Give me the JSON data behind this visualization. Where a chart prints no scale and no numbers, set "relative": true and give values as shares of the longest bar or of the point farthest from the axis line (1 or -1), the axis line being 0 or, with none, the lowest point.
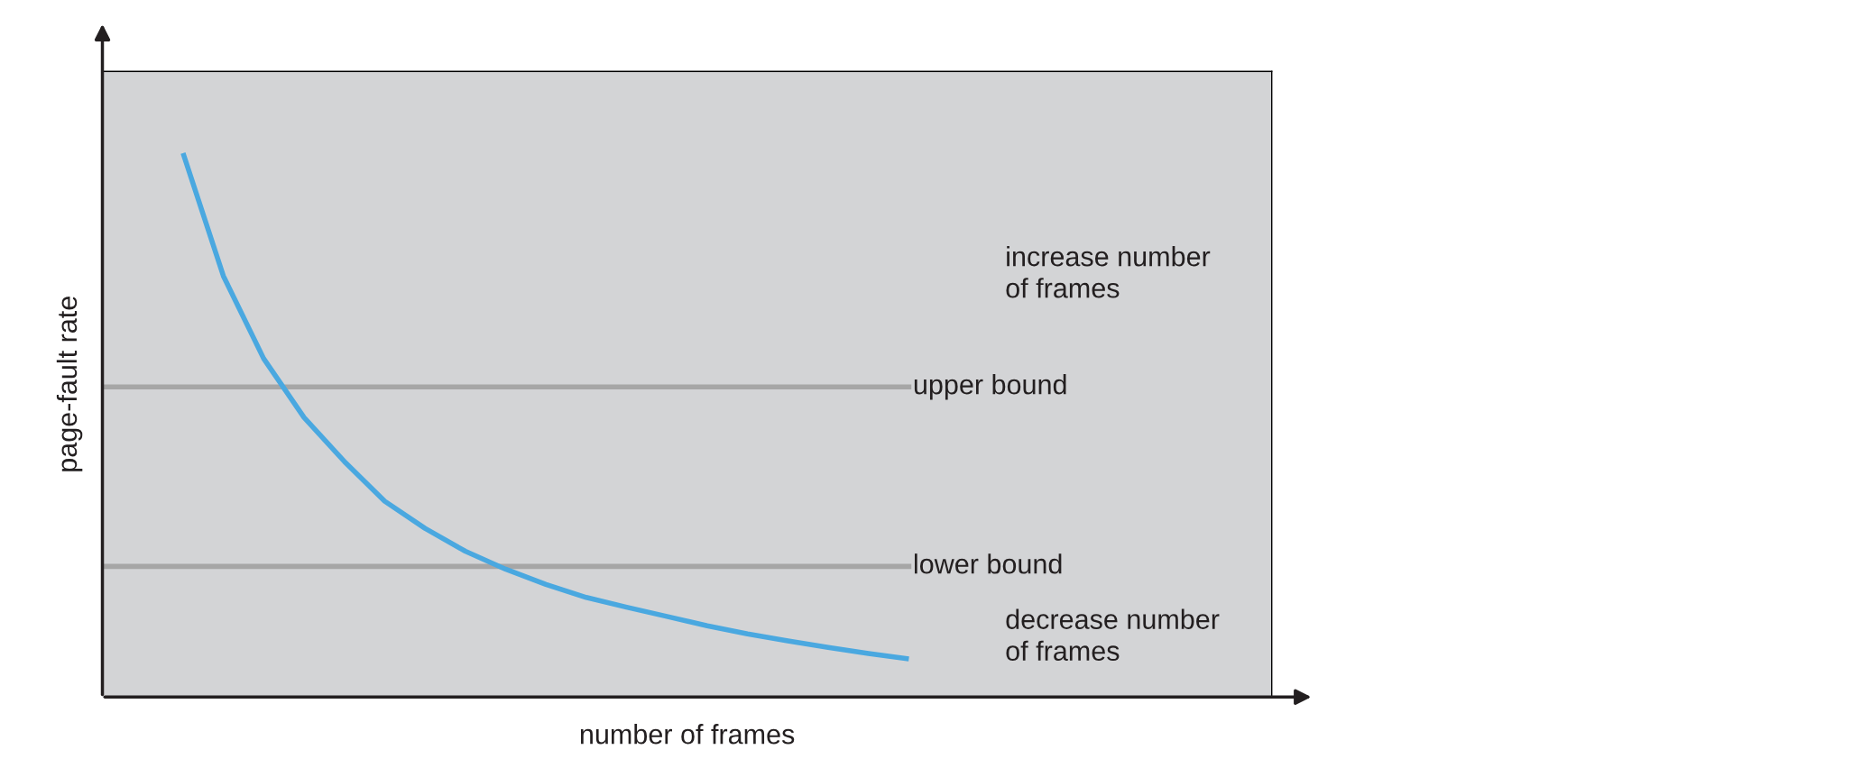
{
  "chart_data": {
    "type": "line",
    "relative": true,
    "xlabel": "number of frames",
    "ylabel": "page-fault rate",
    "categories": [
      null,
      null,
      null,
      null,
      null,
      null,
      null,
      null,
      null,
      null,
      null,
      null,
      null,
      null,
      null,
      null,
      null,
      null,
      null,
      null,
      null,
      null,
      null,
      null,
      null,
      null,
      null,
      null,
      null,
      null
    ],
    "series": [
      {
        "color": "#4aa8e0",
        "values": [
          null,
          null,
          1.0,
          0.774,
          0.622,
          0.514,
          0.433,
          0.36,
          0.31,
          0.268,
          0.235,
          0.207,
          0.183,
          0.165,
          0.148,
          0.131,
          0.116,
          0.103,
          0.091,
          0.08,
          0.07,
          null,
          null,
          null,
          null,
          null,
          null,
          null,
          null,
          null
        ]
      }
    ],
    "ref_lines": [
      {
        "axis": "y",
        "value": 0.57,
        "label": "upper bound",
        "color": "#a6a6a6"
      },
      {
        "axis": "y",
        "value": 0.24,
        "label": "lower bound",
        "color": "#a6a6a6"
      }
    ],
    "annotations": [
      "increase number\nof frames",
      "decrease number\nof frames"
    ],
    "grid": false,
    "legend": false
  }
}
